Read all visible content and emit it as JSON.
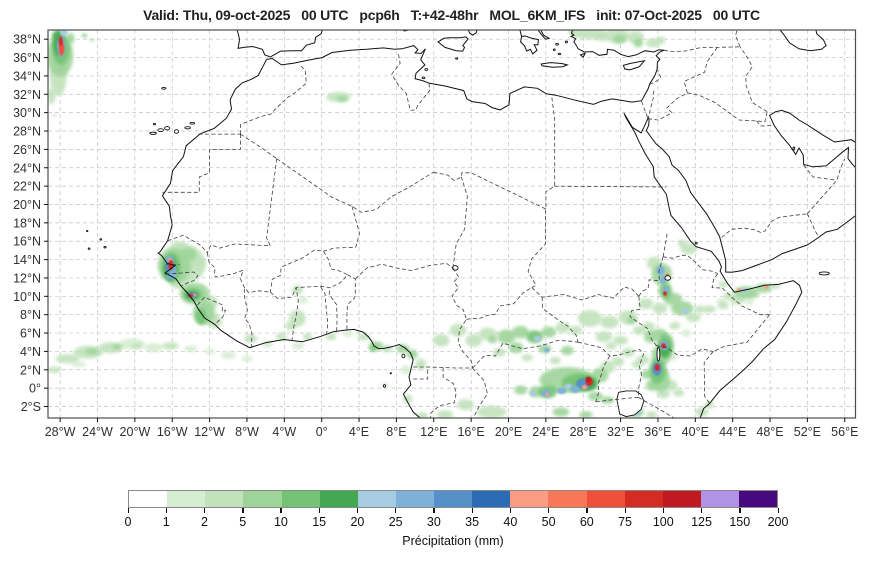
{
  "title": "Valid: Thu, 09-oct-2025   00 UTC   pcp6h   T:+42-48hr   MOL_6KM_IFS   init: 07-Oct-2025   00 UTC",
  "map": {
    "lat_ticks": [
      "38°N",
      "36°N",
      "34°N",
      "32°N",
      "30°N",
      "28°N",
      "26°N",
      "24°N",
      "22°N",
      "20°N",
      "18°N",
      "16°N",
      "14°N",
      "12°N",
      "10°N",
      "8°N",
      "6°N",
      "4°N",
      "2°N",
      "0°",
      "2°S"
    ],
    "lat_values": [
      38,
      36,
      34,
      32,
      30,
      28,
      26,
      24,
      22,
      20,
      18,
      16,
      14,
      12,
      10,
      8,
      6,
      4,
      2,
      0,
      -2
    ],
    "lon_ticks": [
      "28°W",
      "24°W",
      "20°W",
      "16°W",
      "12°W",
      "8°W",
      "4°W",
      "0°",
      "4°E",
      "8°E",
      "12°E",
      "16°E",
      "20°E",
      "24°E",
      "28°E",
      "32°E",
      "36°E",
      "40°E",
      "44°E",
      "48°E",
      "52°E",
      "56°E"
    ],
    "lon_values": [
      -28,
      -24,
      -20,
      -16,
      -12,
      -8,
      -4,
      0,
      4,
      8,
      12,
      16,
      20,
      24,
      28,
      32,
      36,
      40,
      44,
      48,
      52,
      56
    ],
    "frame_color": "#4d4d4d",
    "grid_color": "#c2c2c2",
    "coast_color": "#111111",
    "border_color": "#3f3f3f"
  },
  "legend": {
    "label": "Précipitation (mm)",
    "ticks": [
      "0",
      "1",
      "2",
      "5",
      "10",
      "15",
      "20",
      "25",
      "30",
      "35",
      "40",
      "50",
      "60",
      "75",
      "100",
      "125",
      "150",
      "200"
    ],
    "colors": [
      "#ffffff",
      "#d5edd0",
      "#c1e2bb",
      "#9ed49a",
      "#74c274",
      "#43a851",
      "#a8cbe4",
      "#7db1d8",
      "#5591c8",
      "#2c6cb4",
      "#fb9c84",
      "#f97659",
      "#f0503a",
      "#d42b23",
      "#c01a20",
      "#b193e6",
      "#470a7e"
    ]
  },
  "levels": {
    "g1": 1,
    "g2": 2,
    "g3": 3,
    "g4": 4,
    "g5": 5,
    "b1": 6,
    "b2": 7,
    "b3": 8,
    "b4": 9,
    "s1": 10,
    "s2": 11,
    "r1": 12,
    "r2": 13,
    "r3": 14,
    "p1": 15,
    "p2": 16
  },
  "precip_cells": [
    [
      -28.2,
      34.0,
      0.9,
      2.2,
      "g2"
    ],
    [
      -28.0,
      36.2,
      1.4,
      2.3,
      "g3"
    ],
    [
      -27.9,
      36.9,
      0.9,
      1.7,
      "g4"
    ],
    [
      -28.2,
      37.6,
      0.55,
      1.4,
      "g5"
    ],
    [
      -27.9,
      37.2,
      0.45,
      1.1,
      "b2"
    ],
    [
      -27.85,
      37.0,
      0.3,
      0.8,
      "r1"
    ],
    [
      -27.95,
      37.8,
      0.22,
      0.5,
      "r2"
    ],
    [
      -28.4,
      38.4,
      0.5,
      0.5,
      "g4"
    ],
    [
      -27.6,
      38.7,
      0.4,
      0.35,
      "b1"
    ],
    [
      -28.9,
      31.8,
      0.4,
      0.9,
      "g2"
    ],
    [
      -28.6,
      29.7,
      0.15,
      0.12,
      "g4"
    ],
    [
      -26.9,
      38.1,
      0.45,
      0.6,
      "g3"
    ],
    [
      -25.4,
      38.4,
      0.3,
      0.2,
      "g4"
    ],
    [
      -24.6,
      37.9,
      0.22,
      0.16,
      "g3"
    ],
    [
      1.8,
      31.7,
      1.3,
      0.55,
      "g2"
    ],
    [
      2.2,
      31.5,
      0.6,
      0.3,
      "g3"
    ],
    [
      27.0,
      38.8,
      0.6,
      0.4,
      "g2"
    ],
    [
      28.6,
      38.6,
      1.8,
      0.6,
      "g2"
    ],
    [
      30.0,
      38.3,
      0.8,
      0.5,
      "g2"
    ],
    [
      31.6,
      38.4,
      1.4,
      0.8,
      "g2"
    ],
    [
      31.9,
      38.0,
      0.7,
      0.5,
      "g3"
    ],
    [
      33.6,
      38.2,
      0.9,
      0.7,
      "g2"
    ],
    [
      33.9,
      37.6,
      0.5,
      0.5,
      "g3"
    ],
    [
      35.5,
      37.6,
      0.8,
      0.5,
      "g2"
    ],
    [
      36.3,
      37.9,
      0.5,
      0.4,
      "g2"
    ],
    [
      -15.0,
      13.5,
      2.6,
      2.2,
      "g2"
    ],
    [
      -15.7,
      13.3,
      1.7,
      1.9,
      "g3"
    ],
    [
      -16.1,
      13.2,
      1.0,
      1.6,
      "g4"
    ],
    [
      -16.2,
      13.0,
      0.7,
      1.3,
      "g5"
    ],
    [
      -16.3,
      13.8,
      0.5,
      0.6,
      "b2"
    ],
    [
      -16.0,
      12.8,
      0.45,
      0.9,
      "b2"
    ],
    [
      -16.45,
      13.1,
      0.3,
      0.5,
      "b3"
    ],
    [
      -16.15,
      13.4,
      0.28,
      0.55,
      "r2"
    ],
    [
      -16.25,
      13.95,
      0.2,
      0.25,
      "s1"
    ],
    [
      -15.9,
      12.3,
      0.3,
      0.4,
      "b1"
    ],
    [
      -16.4,
      12.1,
      0.25,
      0.3,
      "b2"
    ],
    [
      -14.2,
      14.6,
      0.8,
      0.7,
      "g3"
    ],
    [
      -15.2,
      15.3,
      0.9,
      0.7,
      "g2"
    ],
    [
      -13.4,
      13.8,
      0.8,
      0.6,
      "g2"
    ],
    [
      -13.6,
      10.3,
      1.6,
      1.2,
      "g3"
    ],
    [
      -13.8,
      10.2,
      1.0,
      0.7,
      "g4"
    ],
    [
      -13.9,
      10.1,
      0.7,
      0.45,
      "g5"
    ],
    [
      -13.85,
      10.15,
      0.55,
      0.3,
      "b3"
    ],
    [
      -14.05,
      10.1,
      0.3,
      0.18,
      "r2"
    ],
    [
      -13.6,
      10.15,
      0.2,
      0.15,
      "s1"
    ],
    [
      -12.6,
      8.2,
      1.2,
      1.3,
      "g3"
    ],
    [
      -12.9,
      7.8,
      0.6,
      0.9,
      "g4"
    ],
    [
      -12.0,
      9.3,
      0.9,
      0.8,
      "g2"
    ],
    [
      -11.5,
      7.3,
      0.8,
      0.8,
      "g2"
    ],
    [
      -15.3,
      11.6,
      1.0,
      0.8,
      "g2"
    ],
    [
      -27.2,
      3.2,
      1.3,
      0.5,
      "g2"
    ],
    [
      -25.0,
      3.9,
      1.6,
      0.7,
      "g2"
    ],
    [
      -24.6,
      4.0,
      0.7,
      0.35,
      "g3"
    ],
    [
      -22.6,
      4.4,
      1.3,
      0.6,
      "g2"
    ],
    [
      -21.9,
      4.5,
      0.5,
      0.3,
      "g3"
    ],
    [
      -20.3,
      4.8,
      1.4,
      0.6,
      "g1"
    ],
    [
      -19.8,
      4.6,
      0.6,
      0.3,
      "g2"
    ],
    [
      -18.0,
      4.4,
      1.0,
      0.5,
      "g1"
    ],
    [
      -16.2,
      4.6,
      0.9,
      0.4,
      "g2"
    ],
    [
      -28.6,
      2.0,
      0.7,
      0.35,
      "g2"
    ],
    [
      -26.0,
      2.6,
      0.8,
      0.3,
      "g1"
    ],
    [
      -14.0,
      4.3,
      0.7,
      0.35,
      "g1"
    ],
    [
      -12.0,
      4.0,
      0.6,
      0.3,
      "g1"
    ],
    [
      -10.0,
      3.6,
      0.8,
      0.4,
      "g1"
    ],
    [
      -8.0,
      3.2,
      0.6,
      0.3,
      "g1"
    ],
    [
      -7.6,
      5.4,
      0.7,
      0.5,
      "g2"
    ],
    [
      -5.8,
      4.8,
      0.6,
      0.4,
      "g1"
    ],
    [
      -4.3,
      5.6,
      0.6,
      0.4,
      "g2"
    ],
    [
      -2.5,
      4.6,
      0.7,
      0.4,
      "g1"
    ],
    [
      -2.6,
      10.7,
      0.6,
      0.5,
      "g2"
    ],
    [
      -2.0,
      9.6,
      0.5,
      0.4,
      "g1"
    ],
    [
      -2.6,
      7.6,
      0.9,
      0.9,
      "g2"
    ],
    [
      -3.3,
      6.8,
      0.6,
      0.5,
      "g2"
    ],
    [
      -1.5,
      5.6,
      0.5,
      0.4,
      "g2"
    ],
    [
      1.0,
      5.6,
      0.6,
      0.4,
      "g2"
    ],
    [
      2.8,
      5.9,
      0.5,
      0.35,
      "g1"
    ],
    [
      4.5,
      5.6,
      0.7,
      0.4,
      "g2"
    ],
    [
      5.8,
      4.6,
      0.8,
      0.5,
      "g3"
    ],
    [
      5.5,
      4.3,
      0.4,
      0.3,
      "g4"
    ],
    [
      7.0,
      4.3,
      0.6,
      0.4,
      "g2"
    ],
    [
      8.7,
      4.3,
      0.7,
      0.5,
      "g3"
    ],
    [
      9.7,
      3.7,
      0.6,
      0.5,
      "g3"
    ],
    [
      10.6,
      2.6,
      0.6,
      0.6,
      "g2"
    ],
    [
      9.0,
      2.0,
      0.5,
      0.5,
      "g1"
    ],
    [
      6.8,
      0.3,
      0.4,
      0.3,
      "g1"
    ],
    [
      12.8,
      5.2,
      0.9,
      0.7,
      "g2"
    ],
    [
      14.6,
      6.3,
      0.9,
      0.7,
      "g2"
    ],
    [
      16.3,
      5.2,
      0.9,
      0.7,
      "g2"
    ],
    [
      17.8,
      5.9,
      1.0,
      0.7,
      "g2"
    ],
    [
      18.3,
      5.3,
      0.5,
      0.4,
      "g3"
    ],
    [
      19.8,
      5.6,
      1.0,
      0.8,
      "g3"
    ],
    [
      21.3,
      6.1,
      0.9,
      0.7,
      "g3"
    ],
    [
      22.8,
      5.6,
      0.9,
      0.7,
      "g4"
    ],
    [
      23.1,
      5.4,
      0.4,
      0.3,
      "b1"
    ],
    [
      24.3,
      6.1,
      0.8,
      0.6,
      "g3"
    ],
    [
      25.8,
      6.6,
      0.8,
      0.6,
      "g2"
    ],
    [
      27.2,
      6.3,
      0.7,
      0.5,
      "g2"
    ],
    [
      20.8,
      4.4,
      0.8,
      0.6,
      "g3"
    ],
    [
      19.0,
      3.9,
      0.7,
      0.5,
      "g2"
    ],
    [
      23.9,
      4.3,
      0.7,
      0.5,
      "g3"
    ],
    [
      24.1,
      4.15,
      0.3,
      0.25,
      "b2"
    ],
    [
      26.3,
      4.1,
      0.7,
      0.5,
      "g3"
    ],
    [
      25.0,
      3.0,
      0.6,
      0.4,
      "g2"
    ],
    [
      22.0,
      3.3,
      0.6,
      0.4,
      "g2"
    ],
    [
      28.7,
      7.6,
      1.3,
      0.9,
      "g2"
    ],
    [
      30.8,
      7.2,
      1.0,
      0.7,
      "g2"
    ],
    [
      32.8,
      7.7,
      1.0,
      0.8,
      "g2"
    ],
    [
      33.2,
      7.4,
      0.5,
      0.4,
      "g3"
    ],
    [
      30.2,
      5.6,
      0.9,
      0.6,
      "g2"
    ],
    [
      32.0,
      5.2,
      0.8,
      0.5,
      "g2"
    ],
    [
      34.0,
      6.3,
      0.7,
      0.5,
      "g2"
    ],
    [
      32.8,
      3.9,
      0.7,
      0.5,
      "g2"
    ],
    [
      33.8,
      2.6,
      0.6,
      0.4,
      "g2"
    ],
    [
      31.0,
      4.6,
      0.6,
      0.4,
      "g2"
    ],
    [
      26.3,
      0.9,
      3.0,
      1.4,
      "g3"
    ],
    [
      27.6,
      0.6,
      1.9,
      1.0,
      "g4"
    ],
    [
      28.4,
      0.45,
      1.1,
      0.75,
      "g5"
    ],
    [
      28.05,
      0.5,
      0.8,
      0.55,
      "b3"
    ],
    [
      28.65,
      0.7,
      0.4,
      0.45,
      "r2"
    ],
    [
      28.55,
      0.95,
      0.28,
      0.3,
      "r3"
    ],
    [
      28.15,
      0.1,
      0.3,
      0.25,
      "s1"
    ],
    [
      27.15,
      -0.1,
      0.5,
      0.4,
      "b2"
    ],
    [
      26.4,
      0.2,
      0.4,
      0.3,
      "b1"
    ],
    [
      25.7,
      -0.3,
      0.5,
      0.35,
      "b2"
    ],
    [
      24.2,
      -0.4,
      1.0,
      0.7,
      "g4"
    ],
    [
      24.0,
      -0.55,
      0.5,
      0.4,
      "b2"
    ],
    [
      24.15,
      -0.7,
      0.2,
      0.18,
      "s1"
    ],
    [
      23.0,
      -0.4,
      0.8,
      0.6,
      "g3"
    ],
    [
      22.6,
      -0.6,
      0.35,
      0.3,
      "b1"
    ],
    [
      21.3,
      -0.2,
      0.7,
      0.5,
      "g3"
    ],
    [
      29.8,
      1.4,
      0.9,
      0.8,
      "g3"
    ],
    [
      30.6,
      2.3,
      0.8,
      0.7,
      "g2"
    ],
    [
      31.7,
      2.9,
      0.7,
      0.5,
      "g2"
    ],
    [
      29.3,
      -0.9,
      0.8,
      0.5,
      "g3"
    ],
    [
      30.6,
      -1.3,
      0.7,
      0.4,
      "g3"
    ],
    [
      35.95,
      1.9,
      0.9,
      1.4,
      "g4"
    ],
    [
      35.9,
      2.1,
      0.5,
      0.75,
      "b3"
    ],
    [
      35.92,
      2.25,
      0.28,
      0.38,
      "r2"
    ],
    [
      36.3,
      1.0,
      1.0,
      1.4,
      "g3"
    ],
    [
      35.4,
      0.3,
      0.7,
      0.6,
      "g3"
    ],
    [
      37.3,
      0.3,
      0.8,
      0.6,
      "g2"
    ],
    [
      34.8,
      1.5,
      0.6,
      0.5,
      "g3"
    ],
    [
      36.6,
      -0.6,
      0.7,
      0.5,
      "g2"
    ],
    [
      38.2,
      -0.5,
      0.6,
      0.4,
      "g2"
    ],
    [
      36.4,
      12.4,
      1.1,
      1.2,
      "g3"
    ],
    [
      36.3,
      12.8,
      0.45,
      0.5,
      "b2"
    ],
    [
      36.55,
      11.8,
      0.35,
      0.45,
      "b2"
    ],
    [
      37.0,
      12.3,
      0.18,
      0.15,
      "r1"
    ],
    [
      36.8,
      10.6,
      0.7,
      0.9,
      "g4"
    ],
    [
      36.85,
      10.7,
      0.32,
      0.4,
      "b2"
    ],
    [
      36.75,
      10.3,
      0.2,
      0.25,
      "r2"
    ],
    [
      35.6,
      13.6,
      0.8,
      0.7,
      "g2"
    ],
    [
      37.6,
      9.7,
      1.0,
      0.7,
      "g3"
    ],
    [
      38.6,
      8.7,
      1.2,
      0.8,
      "g3"
    ],
    [
      38.9,
      8.4,
      0.4,
      0.3,
      "b1"
    ],
    [
      36.2,
      8.7,
      0.8,
      0.6,
      "g2"
    ],
    [
      34.7,
      9.2,
      0.8,
      0.6,
      "g2"
    ],
    [
      39.8,
      7.7,
      0.8,
      0.5,
      "g2"
    ],
    [
      40.5,
      8.6,
      0.6,
      0.4,
      "g2"
    ],
    [
      35.0,
      6.7,
      0.7,
      0.5,
      "g2"
    ],
    [
      36.2,
      6.0,
      0.7,
      0.5,
      "g3"
    ],
    [
      37.8,
      6.8,
      0.6,
      0.4,
      "g2"
    ],
    [
      39.0,
      6.0,
      0.5,
      0.4,
      "g1"
    ],
    [
      36.8,
      4.6,
      0.9,
      1.4,
      "g4"
    ],
    [
      36.7,
      4.3,
      0.55,
      0.9,
      "g5"
    ],
    [
      36.65,
      4.65,
      0.45,
      0.55,
      "b2"
    ],
    [
      36.6,
      4.6,
      0.26,
      0.3,
      "r2"
    ],
    [
      36.3,
      3.5,
      1.0,
      1.2,
      "g3"
    ],
    [
      35.3,
      5.6,
      0.8,
      0.7,
      "g3"
    ],
    [
      34.4,
      3.1,
      0.7,
      0.5,
      "g2"
    ],
    [
      35.6,
      1.9,
      0.6,
      0.4,
      "g2"
    ],
    [
      37.5,
      3.4,
      0.6,
      0.4,
      "g1"
    ],
    [
      45.4,
      10.4,
      1.3,
      0.7,
      "g3"
    ],
    [
      45.2,
      10.6,
      0.4,
      0.25,
      "b1"
    ],
    [
      44.7,
      10.7,
      0.22,
      0.18,
      "s1"
    ],
    [
      47.3,
      10.9,
      0.9,
      0.5,
      "g3"
    ],
    [
      47.6,
      11.0,
      0.25,
      0.2,
      "s1"
    ],
    [
      46.3,
      10.2,
      0.6,
      0.4,
      "g2"
    ],
    [
      43.6,
      10.0,
      0.6,
      0.4,
      "g2"
    ],
    [
      48.6,
      11.1,
      0.5,
      0.3,
      "g2"
    ],
    [
      42.8,
      9.4,
      0.5,
      0.4,
      "g1"
    ],
    [
      39.3,
      15.2,
      0.9,
      0.6,
      "g2"
    ],
    [
      38.6,
      15.8,
      0.5,
      0.4,
      "g2"
    ],
    [
      43.0,
      11.3,
      0.5,
      0.35,
      "g2"
    ],
    [
      41.5,
      8.6,
      0.7,
      0.4,
      "g2"
    ],
    [
      43.0,
      9.0,
      0.6,
      0.4,
      "g2"
    ],
    [
      44.5,
      9.6,
      0.8,
      0.5,
      "g2"
    ],
    [
      45.8,
      9.4,
      0.5,
      0.3,
      "g1"
    ],
    [
      18.2,
      -2.6,
      1.6,
      0.7,
      "g2"
    ],
    [
      15.4,
      -1.8,
      0.9,
      0.6,
      "g2"
    ],
    [
      13.2,
      -2.9,
      0.9,
      0.5,
      "g2"
    ],
    [
      25.6,
      -2.6,
      0.9,
      0.5,
      "g3"
    ],
    [
      28.3,
      -2.9,
      0.7,
      0.4,
      "g3"
    ],
    [
      33.6,
      -2.6,
      0.9,
      0.6,
      "g3"
    ],
    [
      33.9,
      -2.7,
      0.35,
      0.25,
      "b1"
    ],
    [
      35.3,
      -2.9,
      0.6,
      0.4,
      "g2"
    ],
    [
      40.7,
      -2.6,
      0.7,
      0.5,
      "g2"
    ],
    [
      41.5,
      -1.8,
      0.5,
      0.4,
      "g2"
    ],
    [
      9.2,
      -1.2,
      0.5,
      0.5,
      "g2"
    ],
    [
      10.8,
      -3.0,
      0.6,
      0.4,
      "g2"
    ]
  ]
}
